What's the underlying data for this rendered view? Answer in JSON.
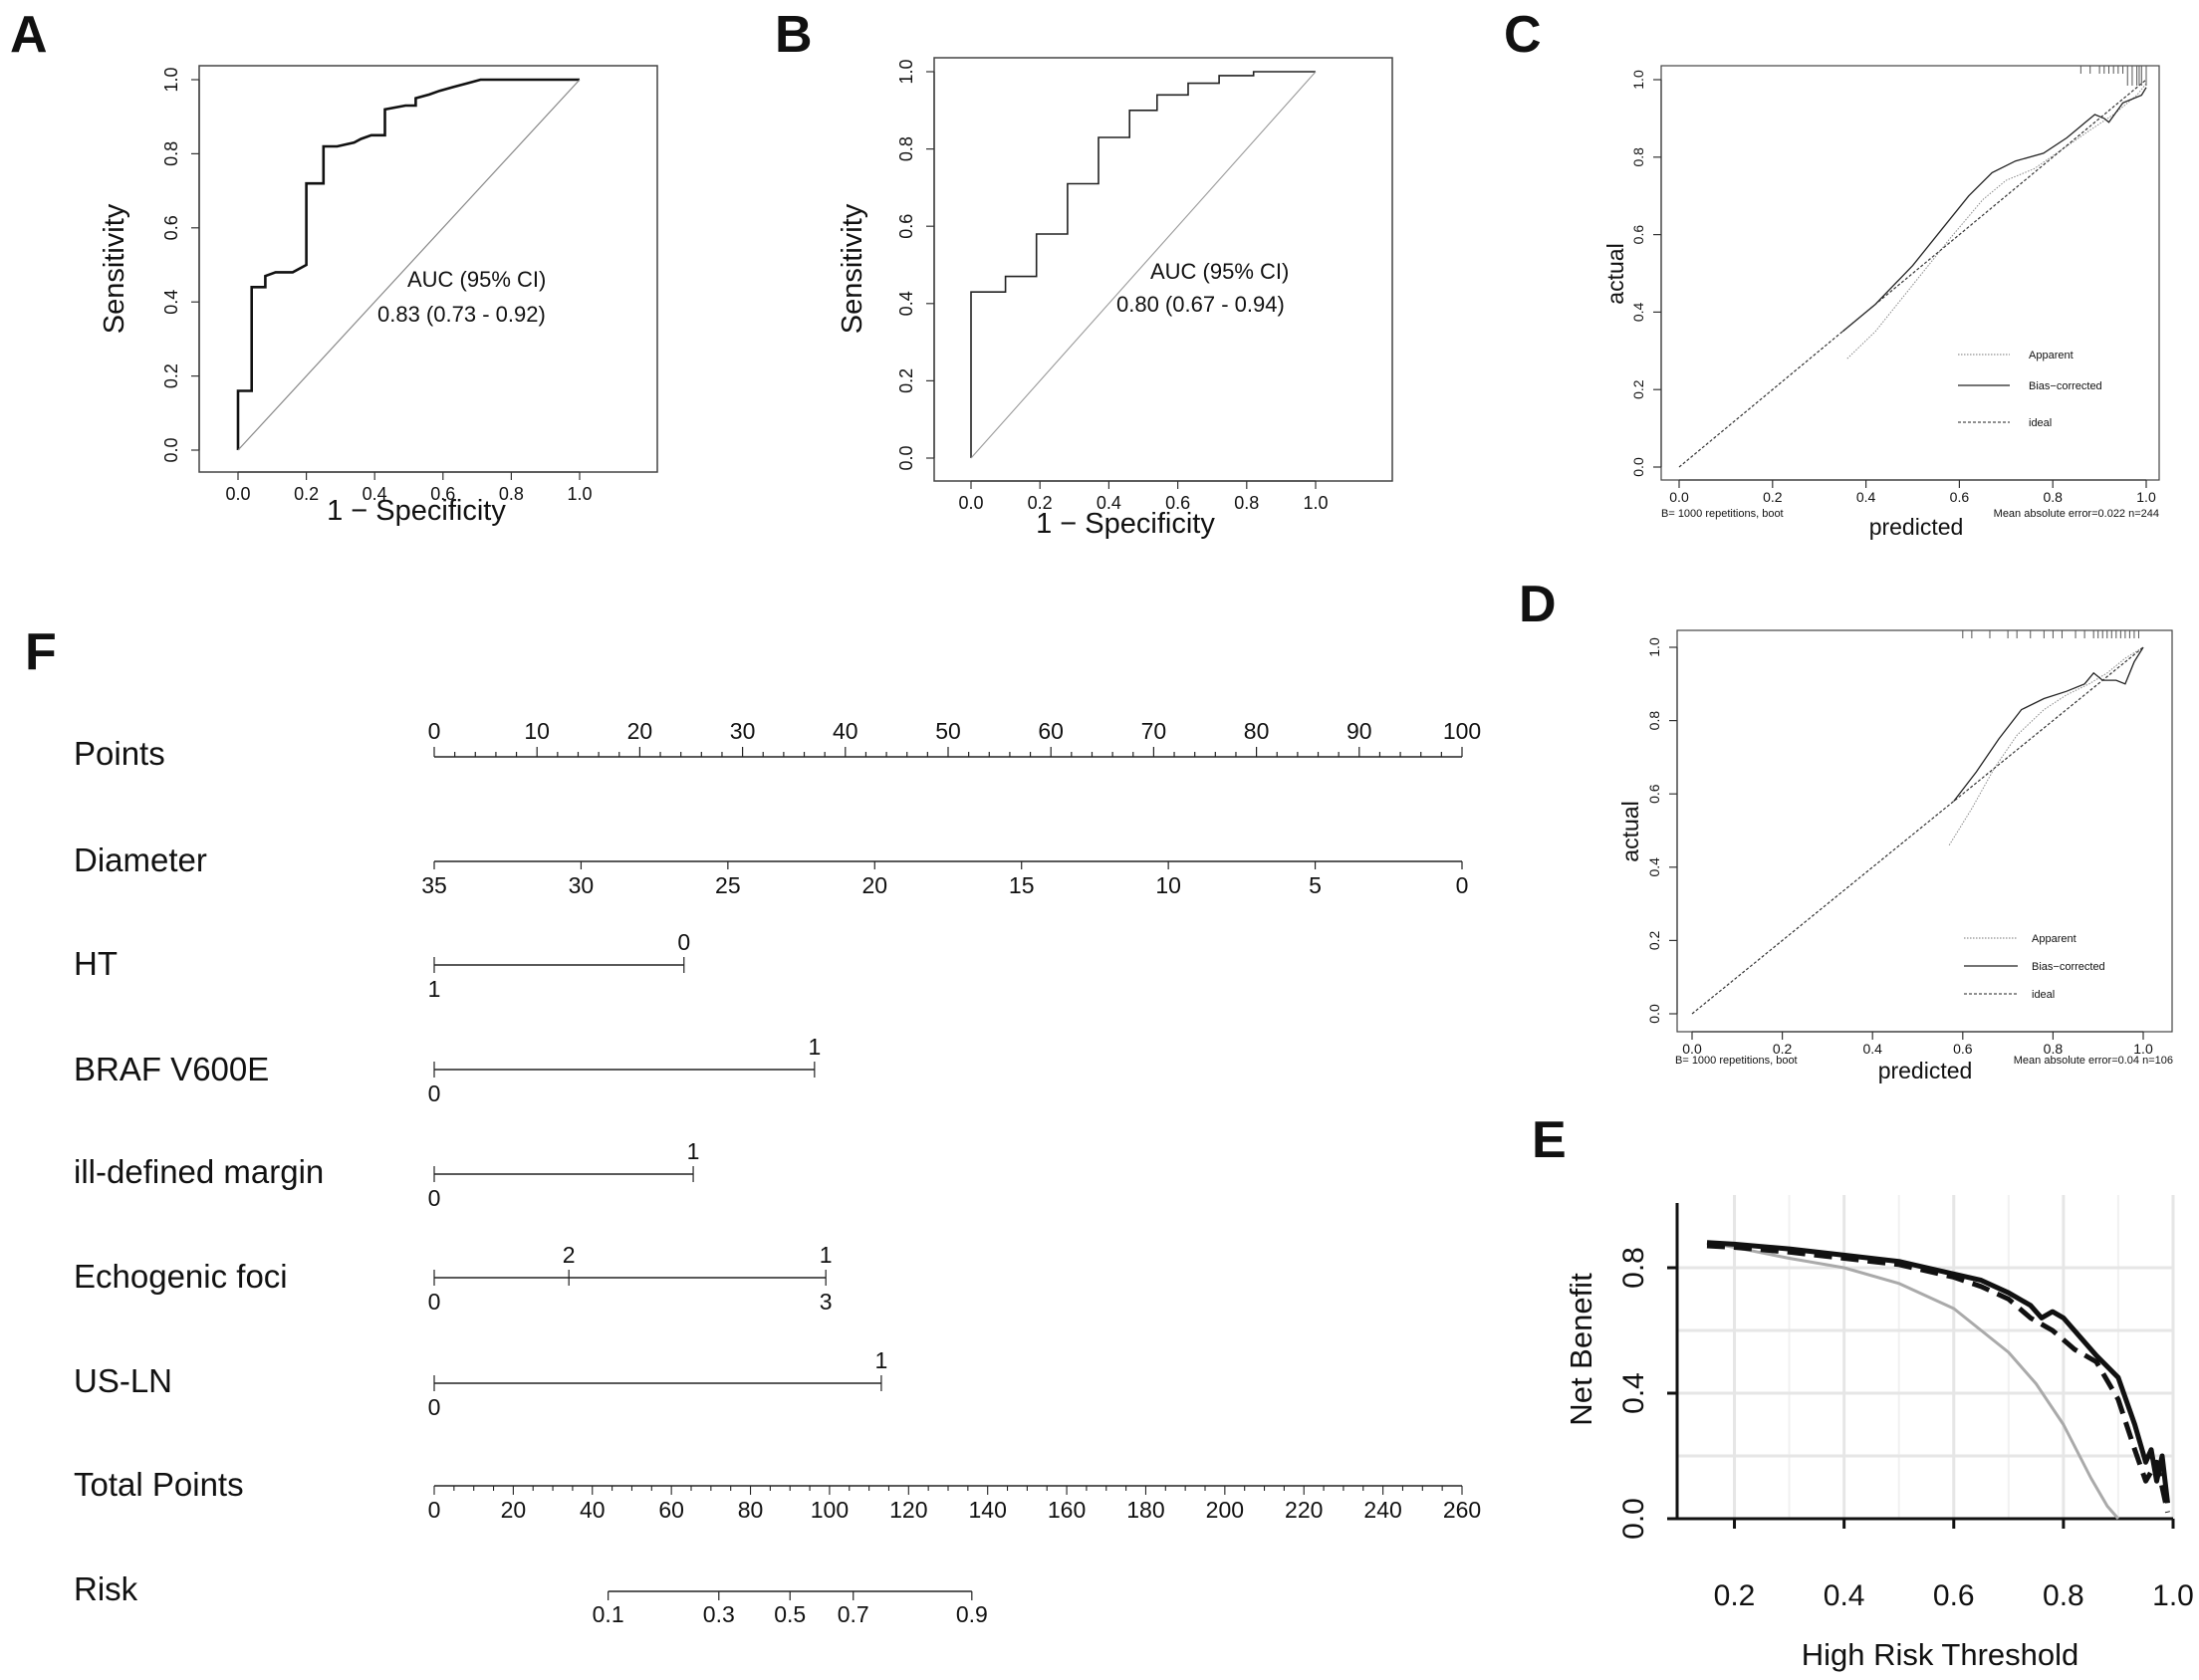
{
  "panels": {
    "A": "A",
    "B": "B",
    "C": "C",
    "D": "D",
    "E": "E",
    "F": "F"
  },
  "chart_data": [
    {
      "id": "A",
      "type": "line",
      "title": "",
      "xlabel": "1 − Specificity",
      "ylabel": "Sensitivity",
      "xlim": [
        0,
        1
      ],
      "ylim": [
        0,
        1
      ],
      "ticks": [
        "0.0",
        "0.2",
        "0.4",
        "0.6",
        "0.8",
        "1.0"
      ],
      "annotation": [
        "AUC (95% CI)",
        "0.83 (0.73 - 0.92)"
      ],
      "series": [
        {
          "name": "ROC",
          "x": [
            0,
            0,
            0.04,
            0.04,
            0.08,
            0.08,
            0.11,
            0.16,
            0.2,
            0.2,
            0.25,
            0.25,
            0.29,
            0.34,
            0.36,
            0.39,
            0.43,
            0.43,
            0.49,
            0.52,
            0.52,
            0.56,
            0.59,
            0.63,
            0.67,
            0.71,
            0.75,
            1.0
          ],
          "y": [
            0,
            0.16,
            0.16,
            0.44,
            0.44,
            0.47,
            0.48,
            0.48,
            0.5,
            0.72,
            0.72,
            0.82,
            0.82,
            0.83,
            0.84,
            0.85,
            0.85,
            0.92,
            0.93,
            0.93,
            0.95,
            0.96,
            0.97,
            0.98,
            0.99,
            1.0,
            1.0,
            1.0
          ]
        },
        {
          "name": "reference",
          "x": [
            0,
            1
          ],
          "y": [
            0,
            1
          ]
        }
      ]
    },
    {
      "id": "B",
      "type": "line",
      "title": "",
      "xlabel": "1 − Specificity",
      "ylabel": "Sensitivity",
      "xlim": [
        0,
        1
      ],
      "ylim": [
        0,
        1
      ],
      "ticks": [
        "0.0",
        "0.2",
        "0.4",
        "0.6",
        "0.8",
        "1.0"
      ],
      "annotation": [
        "AUC (95% CI)",
        "0.80 (0.67 - 0.94)"
      ],
      "series": [
        {
          "name": "ROC",
          "x": [
            0,
            0,
            0.1,
            0.1,
            0.19,
            0.19,
            0.28,
            0.28,
            0.37,
            0.37,
            0.46,
            0.46,
            0.54,
            0.54,
            0.63,
            0.63,
            0.72,
            0.72,
            0.82,
            0.82,
            1.0
          ],
          "y": [
            0,
            0.43,
            0.43,
            0.47,
            0.47,
            0.58,
            0.58,
            0.71,
            0.71,
            0.83,
            0.83,
            0.9,
            0.9,
            0.94,
            0.94,
            0.97,
            0.97,
            0.99,
            0.99,
            1.0,
            1.0
          ]
        },
        {
          "name": "reference",
          "x": [
            0,
            1
          ],
          "y": [
            0,
            1
          ]
        }
      ]
    },
    {
      "id": "C",
      "type": "line",
      "title": "",
      "xlabel": "predicted",
      "ylabel": "actual",
      "xlim": [
        0,
        1
      ],
      "ylim": [
        0,
        1
      ],
      "ticks": [
        "0.0",
        "0.2",
        "0.4",
        "0.6",
        "0.8",
        "1.0"
      ],
      "footnote_left": "B= 1000 repetitions, boot",
      "footnote_right": "Mean absolute error=0.022 n=244",
      "legend": [
        "Apparent",
        "Bias−corrected",
        "ideal"
      ],
      "series": [
        {
          "name": "Apparent",
          "x": [
            0.36,
            0.42,
            0.5,
            0.58,
            0.65,
            0.7,
            0.76,
            0.82,
            0.88,
            0.93,
            0.98,
            1.0
          ],
          "y": [
            0.28,
            0.35,
            0.47,
            0.59,
            0.69,
            0.74,
            0.77,
            0.82,
            0.87,
            0.91,
            0.96,
            0.99
          ]
        },
        {
          "name": "Bias-corrected",
          "x": [
            0.35,
            0.42,
            0.5,
            0.56,
            0.62,
            0.67,
            0.72,
            0.78,
            0.83,
            0.87,
            0.89,
            0.91,
            0.92,
            0.95,
            0.99,
            1.0
          ],
          "y": [
            0.35,
            0.42,
            0.52,
            0.61,
            0.7,
            0.76,
            0.79,
            0.81,
            0.85,
            0.89,
            0.91,
            0.9,
            0.89,
            0.94,
            0.96,
            0.98
          ]
        },
        {
          "name": "ideal",
          "x": [
            0,
            1
          ],
          "y": [
            0,
            1
          ]
        }
      ]
    },
    {
      "id": "D",
      "type": "line",
      "title": "",
      "xlabel": "predicted",
      "ylabel": "actual",
      "xlim": [
        0,
        1
      ],
      "ylim": [
        0,
        1
      ],
      "ticks": [
        "0.0",
        "0.2",
        "0.4",
        "0.6",
        "0.8",
        "1.0"
      ],
      "footnote_left": "B= 1000 repetitions, boot",
      "footnote_right": "Mean absolute error=0.04 n=106",
      "legend": [
        "Apparent",
        "Bias−corrected",
        "ideal"
      ],
      "series": [
        {
          "name": "Apparent",
          "x": [
            0.57,
            0.62,
            0.67,
            0.72,
            0.78,
            0.83,
            0.88,
            0.92,
            0.96,
            1.0
          ],
          "y": [
            0.46,
            0.56,
            0.67,
            0.76,
            0.83,
            0.87,
            0.9,
            0.93,
            0.97,
            1.0
          ]
        },
        {
          "name": "Bias-corrected",
          "x": [
            0.58,
            0.63,
            0.68,
            0.73,
            0.78,
            0.83,
            0.87,
            0.89,
            0.91,
            0.94,
            0.96,
            0.98,
            1.0
          ],
          "y": [
            0.58,
            0.66,
            0.75,
            0.83,
            0.86,
            0.88,
            0.9,
            0.93,
            0.91,
            0.91,
            0.9,
            0.96,
            1.0
          ]
        },
        {
          "name": "ideal",
          "x": [
            0,
            1
          ],
          "y": [
            0,
            1
          ]
        }
      ]
    },
    {
      "id": "E",
      "type": "line",
      "title": "",
      "xlabel": "High Risk Threshold",
      "ylabel": "Net Benefit",
      "xlim": [
        0.15,
        1.0
      ],
      "ylim": [
        0,
        1.0
      ],
      "xticks": [
        "0.2",
        "0.4",
        "0.6",
        "0.8",
        "1.0"
      ],
      "yticks": [
        "0.0",
        "0.4",
        "0.8"
      ],
      "series": [
        {
          "name": "model",
          "x": [
            0.15,
            0.2,
            0.3,
            0.4,
            0.5,
            0.6,
            0.65,
            0.7,
            0.74,
            0.76,
            0.78,
            0.8,
            0.83,
            0.86,
            0.9,
            0.93,
            0.95,
            0.96,
            0.97,
            0.98,
            0.99
          ],
          "y": [
            0.88,
            0.875,
            0.86,
            0.84,
            0.82,
            0.78,
            0.76,
            0.72,
            0.68,
            0.64,
            0.66,
            0.64,
            0.58,
            0.52,
            0.45,
            0.3,
            0.18,
            0.22,
            0.12,
            0.2,
            0.05
          ]
        },
        {
          "name": "model-dashed",
          "x": [
            0.15,
            0.2,
            0.3,
            0.4,
            0.5,
            0.6,
            0.65,
            0.7,
            0.74,
            0.78,
            0.82,
            0.86,
            0.9,
            0.93,
            0.95,
            0.97,
            0.98,
            0.99
          ],
          "y": [
            0.87,
            0.865,
            0.85,
            0.83,
            0.81,
            0.77,
            0.74,
            0.7,
            0.64,
            0.6,
            0.54,
            0.5,
            0.38,
            0.22,
            0.12,
            0.18,
            0.1,
            0.02
          ]
        },
        {
          "name": "treat-all",
          "x": [
            0.15,
            0.2,
            0.3,
            0.4,
            0.5,
            0.6,
            0.7,
            0.75,
            0.8,
            0.85,
            0.88,
            0.9
          ],
          "y": [
            0.88,
            0.865,
            0.83,
            0.8,
            0.75,
            0.67,
            0.53,
            0.43,
            0.3,
            0.13,
            0.04,
            0.0
          ]
        },
        {
          "name": "treat-none",
          "x": [
            0.15,
            1.0
          ],
          "y": [
            0,
            0
          ]
        }
      ]
    },
    {
      "id": "F",
      "type": "nomogram",
      "rows": [
        {
          "label": "Points",
          "axis": "top",
          "min": 0,
          "max": 100,
          "labels": [
            "0",
            "10",
            "20",
            "30",
            "40",
            "50",
            "60",
            "70",
            "80",
            "90",
            "100"
          ]
        },
        {
          "label": "Diameter",
          "axis": "bottom",
          "labels": [
            "35",
            "30",
            "25",
            "20",
            "15",
            "10",
            "5",
            "0"
          ]
        },
        {
          "label": "HT",
          "marks": [
            {
              "text": "0",
              "points": 24.3,
              "pos": "top"
            },
            {
              "text": "1",
              "points": 0,
              "pos": "bottom"
            }
          ]
        },
        {
          "label": "BRAF V600E",
          "marks": [
            {
              "text": "1",
              "points": 37,
              "pos": "top"
            },
            {
              "text": "0",
              "points": 0,
              "pos": "bottom"
            }
          ]
        },
        {
          "label": "ill-defined margin",
          "marks": [
            {
              "text": "1",
              "points": 25.2,
              "pos": "top"
            },
            {
              "text": "0",
              "points": 0,
              "pos": "bottom"
            }
          ]
        },
        {
          "label": "Echogenic foci",
          "marks": [
            {
              "text": "2",
              "points": 13.1,
              "pos": "top"
            },
            {
              "text": "1",
              "points": 38.1,
              "pos": "top"
            },
            {
              "text": "0",
              "points": 0,
              "pos": "bottom"
            },
            {
              "text": "3",
              "points": 38.1,
              "pos": "bottom"
            }
          ]
        },
        {
          "label": "US-LN",
          "marks": [
            {
              "text": "1",
              "points": 43.5,
              "pos": "top"
            },
            {
              "text": "0",
              "points": 0,
              "pos": "bottom"
            }
          ]
        },
        {
          "label": "Total Points",
          "axis": "bottom",
          "min": 0,
          "max": 260,
          "labels": [
            "0",
            "20",
            "40",
            "60",
            "80",
            "100",
            "120",
            "140",
            "160",
            "180",
            "200",
            "220",
            "240",
            "260"
          ]
        },
        {
          "label": "Risk",
          "axis": "bottom",
          "labels": [
            "0.1",
            "0.3",
            "0.5",
            "0.7",
            "0.9"
          ],
          "total_points": [
            44,
            72,
            90,
            106,
            136
          ]
        }
      ]
    }
  ]
}
